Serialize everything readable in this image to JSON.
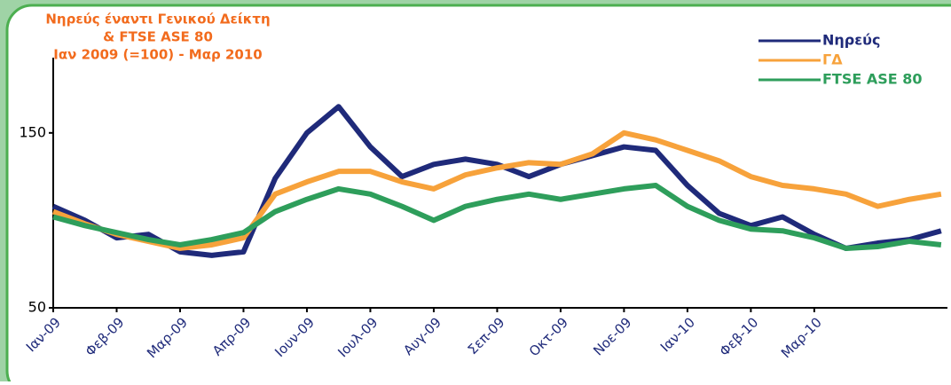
{
  "chart_data": {
    "type": "line",
    "title": [
      "Νηρεύς έναντι Γενικού Δείκτη",
      "& FTSE ASE 80",
      "Ιαν 2009 (=100) - Μαρ 2010"
    ],
    "x": [
      0,
      0.5,
      1,
      1.5,
      2,
      2.5,
      3,
      3.5,
      4,
      4.5,
      5,
      5.5,
      6,
      6.5,
      7,
      7.5,
      8,
      8.5,
      9,
      9.5,
      10,
      10.5,
      11,
      11.5,
      12,
      12.5,
      13,
      13.5,
      14
    ],
    "series": [
      {
        "name": "Νηρεύς",
        "color": "#1f2a7a",
        "values": [
          108,
          100,
          90,
          92,
          82,
          80,
          82,
          124,
          150,
          165,
          142,
          125,
          132,
          135,
          132,
          125,
          132,
          137,
          142,
          140,
          120,
          104,
          97,
          102,
          92,
          84,
          87,
          89,
          94
        ]
      },
      {
        "name": "ΓΔ",
        "color": "#f7a23b",
        "values": [
          105,
          98,
          92,
          88,
          84,
          86,
          90,
          115,
          122,
          128,
          128,
          122,
          118,
          126,
          130,
          133,
          132,
          138,
          150,
          146,
          140,
          134,
          125,
          120,
          118,
          115,
          108,
          112,
          115
        ]
      },
      {
        "name": "FTSE ASE 80",
        "color": "#2e9e5b",
        "values": [
          102,
          97,
          93,
          89,
          86,
          89,
          93,
          105,
          112,
          118,
          115,
          108,
          100,
          108,
          112,
          115,
          112,
          115,
          118,
          120,
          108,
          100,
          95,
          94,
          90,
          84,
          85,
          88,
          86
        ]
      }
    ],
    "xlim": [
      0,
      14.1
    ],
    "xticks": [
      {
        "value": 0,
        "label": "Ιαν-09"
      },
      {
        "value": 1,
        "label": "Φεβ-09"
      },
      {
        "value": 2,
        "label": "Μαρ-09"
      },
      {
        "value": 3,
        "label": "Απρ-09"
      },
      {
        "value": 4,
        "label": "Ιουν-09"
      },
      {
        "value": 5,
        "label": "Ιουλ-09"
      },
      {
        "value": 6,
        "label": "Αυγ-09"
      },
      {
        "value": 7,
        "label": "Σεπ-09"
      },
      {
        "value": 8,
        "label": "Οκτ-09"
      },
      {
        "value": 9,
        "label": "Νοε-09"
      },
      {
        "value": 10,
        "label": "Ιαν-10"
      },
      {
        "value": 11,
        "label": "Φεβ-10"
      },
      {
        "value": 12,
        "label": "Μαρ-10"
      }
    ],
    "ylim": [
      50,
      193
    ],
    "yticks": [
      50,
      150
    ],
    "legend": "upper right",
    "grid": false
  }
}
